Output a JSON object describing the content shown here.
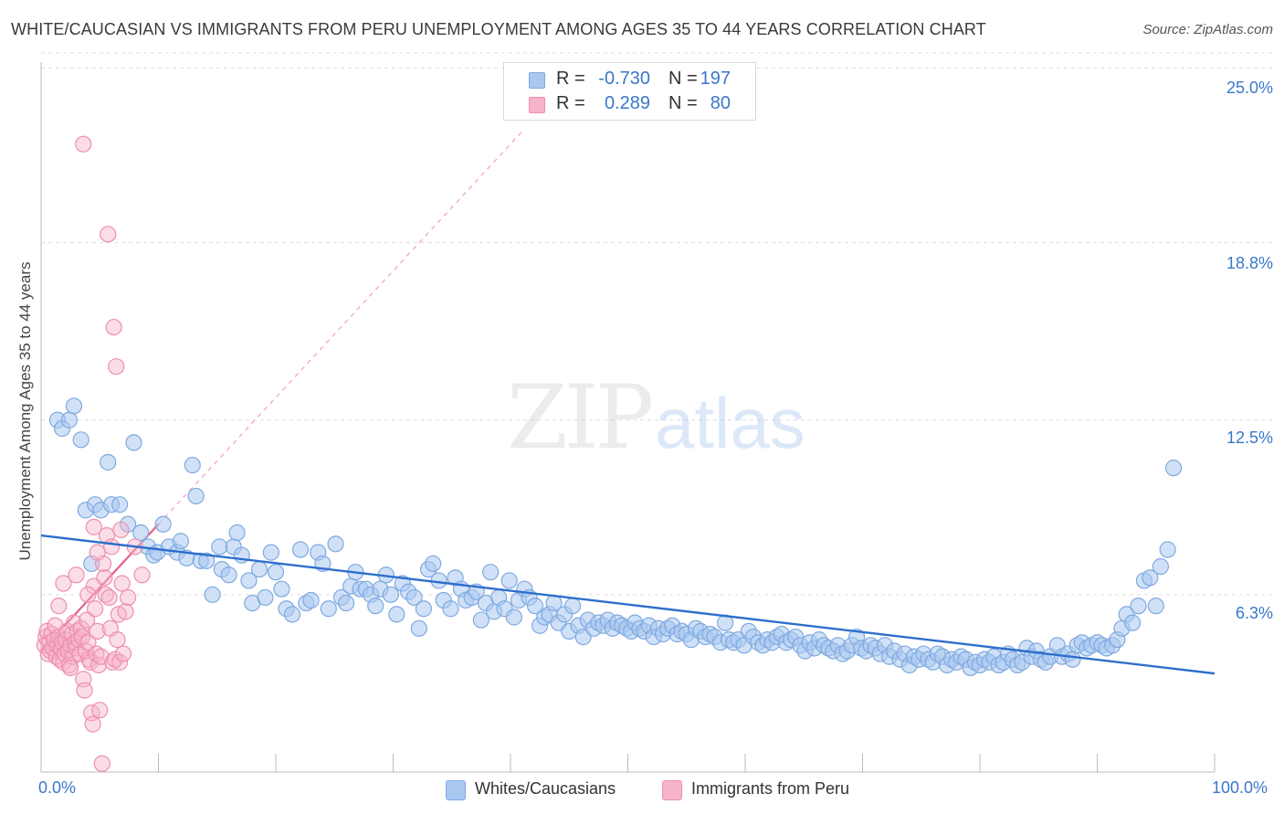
{
  "header": {
    "title": "WHITE/CAUCASIAN VS IMMIGRANTS FROM PERU UNEMPLOYMENT AMONG AGES 35 TO 44 YEARS CORRELATION CHART",
    "source": "Source: ZipAtlas.com"
  },
  "watermark": {
    "zip": "ZIP",
    "atlas": "atlas"
  },
  "legend_top": [
    {
      "r_label": "R =",
      "r_value": "-0.730",
      "n_label": "N =",
      "n_value": "197",
      "color": "#a9c8f0"
    },
    {
      "r_label": "R =",
      "r_value": "0.289",
      "n_label": "N =",
      "n_value": "80",
      "color": "#f6b4c8"
    }
  ],
  "legend_bottom": [
    {
      "label": "Whites/Caucasians",
      "color": "#a9c8f0"
    },
    {
      "label": "Immigrants from Peru",
      "color": "#f6b4c8"
    }
  ],
  "colors": {
    "blue_fill": "#a9c8f0",
    "blue_stroke": "#7fa9e0",
    "blue_line": "#2e6fcc",
    "pink_fill": "#f6b4c8",
    "pink_stroke": "#ee8fae",
    "pink_line": "#e5608c",
    "axis_text": "#3a78c9",
    "grid": "#dddddd"
  },
  "chart_data": {
    "type": "scatter",
    "title": "WHITE/CAUCASIAN VS IMMIGRANTS FROM PERU UNEMPLOYMENT AMONG AGES 35 TO 44 YEARS CORRELATION CHART",
    "xlabel": "",
    "ylabel": "Unemployment Among Ages 35 to 44 years",
    "xlim": [
      0,
      100
    ],
    "ylim": [
      0,
      25.6
    ],
    "x_tick_labels": [
      "0.0%",
      "100.0%"
    ],
    "y_ticks": [
      6.3,
      12.5,
      18.8,
      25.0
    ],
    "y_tick_labels": [
      "6.3%",
      "12.5%",
      "18.8%",
      "25.0%"
    ],
    "grid": true,
    "legend_position": "top-center",
    "series": [
      {
        "name": "Whites/Caucasians",
        "color": "#a9c8f0",
        "trend": {
          "x": [
            0,
            100
          ],
          "y": [
            8.4,
            3.5
          ]
        },
        "points": [
          [
            1.4,
            12.5
          ],
          [
            1.8,
            12.2
          ],
          [
            2.4,
            12.5
          ],
          [
            2.8,
            13.0
          ],
          [
            3.4,
            11.8
          ],
          [
            3.8,
            9.3
          ],
          [
            4.3,
            7.4
          ],
          [
            4.6,
            9.5
          ],
          [
            5.1,
            9.3
          ],
          [
            5.7,
            11.0
          ],
          [
            6.0,
            9.5
          ],
          [
            6.7,
            9.5
          ],
          [
            7.4,
            8.8
          ],
          [
            7.9,
            11.7
          ],
          [
            8.5,
            8.5
          ],
          [
            9.1,
            8.0
          ],
          [
            9.6,
            7.7
          ],
          [
            9.9,
            7.8
          ],
          [
            10.4,
            8.8
          ],
          [
            10.9,
            8.0
          ],
          [
            11.6,
            7.8
          ],
          [
            11.9,
            8.2
          ],
          [
            12.4,
            7.6
          ],
          [
            12.9,
            10.9
          ],
          [
            13.2,
            9.8
          ],
          [
            13.6,
            7.5
          ],
          [
            14.1,
            7.5
          ],
          [
            14.6,
            6.3
          ],
          [
            15.2,
            8.0
          ],
          [
            15.4,
            7.2
          ],
          [
            16.0,
            7.0
          ],
          [
            16.4,
            8.0
          ],
          [
            16.7,
            8.5
          ],
          [
            17.1,
            7.7
          ],
          [
            17.7,
            6.8
          ],
          [
            18.0,
            6.0
          ],
          [
            18.6,
            7.2
          ],
          [
            19.1,
            6.2
          ],
          [
            19.6,
            7.8
          ],
          [
            20.0,
            7.1
          ],
          [
            20.5,
            6.5
          ],
          [
            20.9,
            5.8
          ],
          [
            21.4,
            5.6
          ],
          [
            22.1,
            7.9
          ],
          [
            22.6,
            6.0
          ],
          [
            23.0,
            6.1
          ],
          [
            23.6,
            7.8
          ],
          [
            24.0,
            7.4
          ],
          [
            24.5,
            5.8
          ],
          [
            25.1,
            8.1
          ],
          [
            25.6,
            6.2
          ],
          [
            26.0,
            6.0
          ],
          [
            26.4,
            6.6
          ],
          [
            26.8,
            7.1
          ],
          [
            27.2,
            6.5
          ],
          [
            27.7,
            6.5
          ],
          [
            28.1,
            6.3
          ],
          [
            28.5,
            5.9
          ],
          [
            28.9,
            6.5
          ],
          [
            29.4,
            7.0
          ],
          [
            29.8,
            6.3
          ],
          [
            30.3,
            5.6
          ],
          [
            30.8,
            6.7
          ],
          [
            31.3,
            6.4
          ],
          [
            31.8,
            6.2
          ],
          [
            32.2,
            5.1
          ],
          [
            32.6,
            5.8
          ],
          [
            33.0,
            7.2
          ],
          [
            33.4,
            7.4
          ],
          [
            33.9,
            6.8
          ],
          [
            34.3,
            6.1
          ],
          [
            34.9,
            5.8
          ],
          [
            35.3,
            6.9
          ],
          [
            35.8,
            6.5
          ],
          [
            36.2,
            6.1
          ],
          [
            36.7,
            6.2
          ],
          [
            37.1,
            6.4
          ],
          [
            37.5,
            5.4
          ],
          [
            37.9,
            6.0
          ],
          [
            38.3,
            7.1
          ],
          [
            38.6,
            5.7
          ],
          [
            39.0,
            6.2
          ],
          [
            39.5,
            5.8
          ],
          [
            39.9,
            6.8
          ],
          [
            40.3,
            5.5
          ],
          [
            40.7,
            6.1
          ],
          [
            41.2,
            6.5
          ],
          [
            41.6,
            6.2
          ],
          [
            42.1,
            5.9
          ],
          [
            42.5,
            5.2
          ],
          [
            42.9,
            5.5
          ],
          [
            43.3,
            5.6
          ],
          [
            43.7,
            6.0
          ],
          [
            44.1,
            5.3
          ],
          [
            44.6,
            5.6
          ],
          [
            45.0,
            5.0
          ],
          [
            45.3,
            5.9
          ],
          [
            45.8,
            5.2
          ],
          [
            46.2,
            4.8
          ],
          [
            46.6,
            5.4
          ],
          [
            47.1,
            5.1
          ],
          [
            47.5,
            5.3
          ],
          [
            47.9,
            5.2
          ],
          [
            48.3,
            5.4
          ],
          [
            48.7,
            5.1
          ],
          [
            49.1,
            5.3
          ],
          [
            49.5,
            5.2
          ],
          [
            49.9,
            5.1
          ],
          [
            50.3,
            5.0
          ],
          [
            50.6,
            5.3
          ],
          [
            51.0,
            5.1
          ],
          [
            51.4,
            5.0
          ],
          [
            51.8,
            5.2
          ],
          [
            52.2,
            4.8
          ],
          [
            52.6,
            5.1
          ],
          [
            53.0,
            4.9
          ],
          [
            53.4,
            5.1
          ],
          [
            53.8,
            5.2
          ],
          [
            54.2,
            4.9
          ],
          [
            54.6,
            5.0
          ],
          [
            55.0,
            4.9
          ],
          [
            55.4,
            4.7
          ],
          [
            55.8,
            5.1
          ],
          [
            56.2,
            5.0
          ],
          [
            56.6,
            4.8
          ],
          [
            57.0,
            4.9
          ],
          [
            57.4,
            4.8
          ],
          [
            57.9,
            4.6
          ],
          [
            58.3,
            5.3
          ],
          [
            58.6,
            4.7
          ],
          [
            59.0,
            4.6
          ],
          [
            59.4,
            4.7
          ],
          [
            59.9,
            4.5
          ],
          [
            60.3,
            5.0
          ],
          [
            60.7,
            4.8
          ],
          [
            61.1,
            4.6
          ],
          [
            61.5,
            4.5
          ],
          [
            61.9,
            4.7
          ],
          [
            62.3,
            4.6
          ],
          [
            62.7,
            4.8
          ],
          [
            63.1,
            4.9
          ],
          [
            63.5,
            4.6
          ],
          [
            63.9,
            4.7
          ],
          [
            64.3,
            4.8
          ],
          [
            64.7,
            4.5
          ],
          [
            65.1,
            4.3
          ],
          [
            65.5,
            4.6
          ],
          [
            65.9,
            4.4
          ],
          [
            66.3,
            4.7
          ],
          [
            66.7,
            4.5
          ],
          [
            67.1,
            4.4
          ],
          [
            67.5,
            4.3
          ],
          [
            67.9,
            4.5
          ],
          [
            68.3,
            4.2
          ],
          [
            68.7,
            4.3
          ],
          [
            69.1,
            4.5
          ],
          [
            69.5,
            4.8
          ],
          [
            69.9,
            4.4
          ],
          [
            70.3,
            4.3
          ],
          [
            70.7,
            4.5
          ],
          [
            71.1,
            4.4
          ],
          [
            71.5,
            4.2
          ],
          [
            71.9,
            4.5
          ],
          [
            72.3,
            4.1
          ],
          [
            72.7,
            4.3
          ],
          [
            73.2,
            4.0
          ],
          [
            73.6,
            4.2
          ],
          [
            74.0,
            3.8
          ],
          [
            74.4,
            4.1
          ],
          [
            74.8,
            4.0
          ],
          [
            75.2,
            4.2
          ],
          [
            75.6,
            4.0
          ],
          [
            76.0,
            3.9
          ],
          [
            76.4,
            4.2
          ],
          [
            76.8,
            4.1
          ],
          [
            77.2,
            3.8
          ],
          [
            77.6,
            4.0
          ],
          [
            78.0,
            3.9
          ],
          [
            78.4,
            4.1
          ],
          [
            78.8,
            4.0
          ],
          [
            79.2,
            3.7
          ],
          [
            79.6,
            3.9
          ],
          [
            80.0,
            3.8
          ],
          [
            80.4,
            4.0
          ],
          [
            80.8,
            3.9
          ],
          [
            81.2,
            4.1
          ],
          [
            81.6,
            3.8
          ],
          [
            82.0,
            3.9
          ],
          [
            82.4,
            4.2
          ],
          [
            82.8,
            4.0
          ],
          [
            83.2,
            3.8
          ],
          [
            83.6,
            3.9
          ],
          [
            84.0,
            4.4
          ],
          [
            84.4,
            4.1
          ],
          [
            84.8,
            4.3
          ],
          [
            85.2,
            4.0
          ],
          [
            85.6,
            3.9
          ],
          [
            86.0,
            4.1
          ],
          [
            86.6,
            4.5
          ],
          [
            87.0,
            4.1
          ],
          [
            87.5,
            4.2
          ],
          [
            87.9,
            4.0
          ],
          [
            88.3,
            4.5
          ],
          [
            88.7,
            4.6
          ],
          [
            89.1,
            4.4
          ],
          [
            89.5,
            4.5
          ],
          [
            90.0,
            4.6
          ],
          [
            90.4,
            4.5
          ],
          [
            90.8,
            4.4
          ],
          [
            91.3,
            4.5
          ],
          [
            91.7,
            4.7
          ],
          [
            92.1,
            5.1
          ],
          [
            92.5,
            5.6
          ],
          [
            93.0,
            5.3
          ],
          [
            93.5,
            5.9
          ],
          [
            94.0,
            6.8
          ],
          [
            94.5,
            6.9
          ],
          [
            95.0,
            5.9
          ],
          [
            95.4,
            7.3
          ],
          [
            96.0,
            7.9
          ],
          [
            96.5,
            10.8
          ]
        ]
      },
      {
        "name": "Immigrants from Peru",
        "color": "#f6b4c8",
        "trend": {
          "x": [
            0,
            10
          ],
          "y": [
            4.3,
            8.8
          ]
        },
        "points": [
          [
            0.3,
            4.5
          ],
          [
            0.4,
            4.8
          ],
          [
            0.5,
            5.0
          ],
          [
            0.6,
            4.2
          ],
          [
            0.7,
            4.6
          ],
          [
            0.8,
            4.3
          ],
          [
            0.9,
            4.9
          ],
          [
            1.0,
            4.4
          ],
          [
            1.1,
            4.7
          ],
          [
            1.2,
            5.2
          ],
          [
            1.3,
            4.1
          ],
          [
            1.4,
            4.5
          ],
          [
            1.5,
            4.8
          ],
          [
            1.6,
            4.0
          ],
          [
            1.7,
            4.4
          ],
          [
            1.8,
            4.6
          ],
          [
            1.9,
            3.9
          ],
          [
            2.0,
            4.2
          ],
          [
            2.1,
            4.7
          ],
          [
            2.2,
            5.0
          ],
          [
            2.3,
            4.3
          ],
          [
            2.4,
            3.8
          ],
          [
            2.5,
            4.5
          ],
          [
            2.6,
            4.9
          ],
          [
            2.7,
            4.1
          ],
          [
            2.8,
            5.3
          ],
          [
            2.9,
            4.6
          ],
          [
            3.0,
            4.4
          ],
          [
            3.1,
            5.0
          ],
          [
            3.2,
            4.7
          ],
          [
            3.3,
            4.2
          ],
          [
            3.4,
            5.1
          ],
          [
            3.5,
            4.8
          ],
          [
            3.6,
            3.3
          ],
          [
            3.7,
            2.9
          ],
          [
            3.8,
            4.3
          ],
          [
            3.9,
            5.4
          ],
          [
            4.0,
            4.6
          ],
          [
            4.1,
            4.0
          ],
          [
            4.2,
            3.9
          ],
          [
            4.3,
            2.1
          ],
          [
            4.4,
            1.7
          ],
          [
            4.5,
            6.6
          ],
          [
            4.6,
            5.8
          ],
          [
            4.7,
            4.2
          ],
          [
            4.8,
            5.0
          ],
          [
            4.9,
            3.8
          ],
          [
            5.0,
            2.2
          ],
          [
            5.1,
            4.1
          ],
          [
            5.2,
            0.3
          ],
          [
            5.3,
            7.4
          ],
          [
            5.4,
            6.9
          ],
          [
            5.5,
            6.3
          ],
          [
            5.6,
            8.4
          ],
          [
            5.7,
            19.1
          ],
          [
            5.8,
            6.2
          ],
          [
            5.9,
            5.1
          ],
          [
            6.0,
            8.0
          ],
          [
            6.1,
            3.9
          ],
          [
            6.2,
            15.8
          ],
          [
            6.3,
            4.0
          ],
          [
            6.4,
            14.4
          ],
          [
            6.5,
            4.7
          ],
          [
            6.6,
            5.6
          ],
          [
            6.7,
            3.9
          ],
          [
            6.8,
            8.6
          ],
          [
            6.9,
            6.7
          ],
          [
            7.0,
            4.2
          ],
          [
            7.2,
            5.7
          ],
          [
            7.4,
            6.2
          ],
          [
            1.5,
            5.9
          ],
          [
            1.9,
            6.7
          ],
          [
            2.5,
            3.7
          ],
          [
            3.0,
            7.0
          ],
          [
            3.6,
            22.3
          ],
          [
            4.0,
            6.3
          ],
          [
            4.5,
            8.7
          ],
          [
            4.8,
            7.8
          ],
          [
            8.0,
            8.0
          ],
          [
            8.6,
            7.0
          ]
        ]
      }
    ]
  }
}
